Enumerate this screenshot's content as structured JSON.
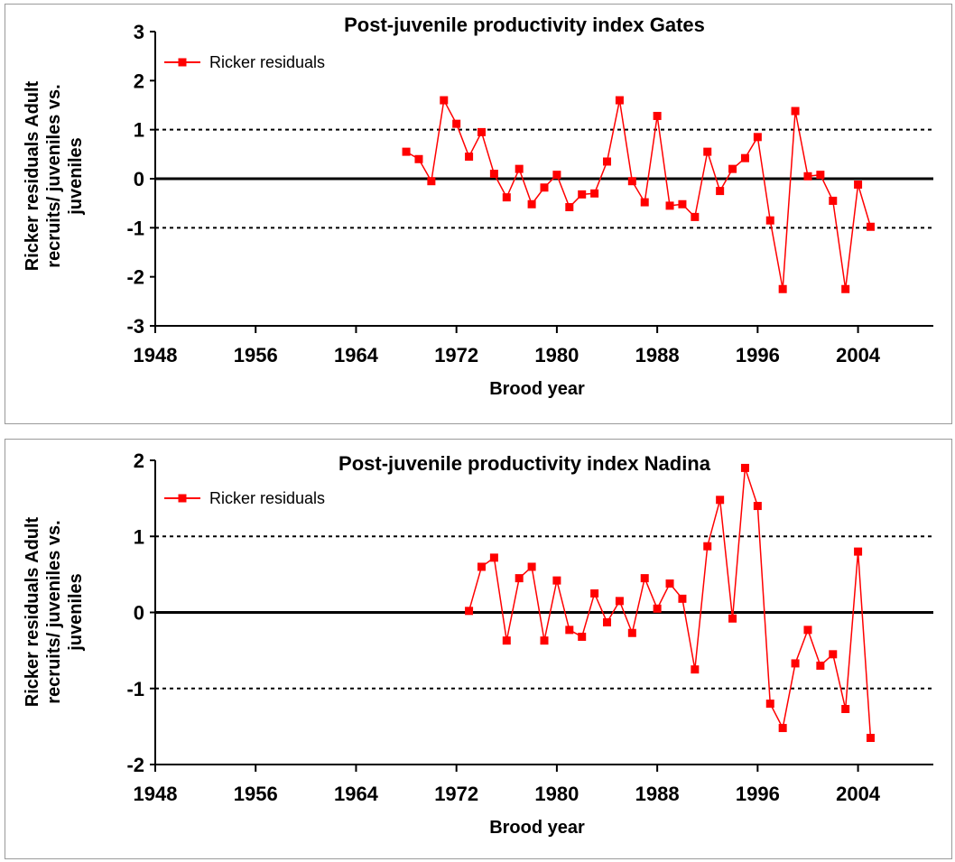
{
  "charts": [
    {
      "type": "line",
      "title": "Post-juvenile productivity index Gates",
      "xlabel": "Brood year",
      "ylabel_lines": [
        "Ricker residuals Adult",
        "recruits/ juveniles vs.",
        "juveniles"
      ],
      "xlim": [
        1948,
        2010
      ],
      "ylim": [
        -3,
        3
      ],
      "x_ticks": [
        1948,
        1956,
        1964,
        1972,
        1980,
        1988,
        1996,
        2004
      ],
      "y_ticks": [
        -3,
        -2,
        -1,
        0,
        1,
        2,
        3
      ],
      "reference_lines": [
        {
          "y": 0,
          "style": "solid"
        },
        {
          "y": 1,
          "style": "dotted"
        },
        {
          "y": -1,
          "style": "dotted"
        }
      ],
      "legend": {
        "position": "top-left",
        "entries": [
          "Ricker residuals"
        ]
      },
      "series": [
        {
          "name": "Ricker residuals",
          "color": "#ff0000",
          "marker": "square",
          "x": [
            1968,
            1969,
            1970,
            1971,
            1972,
            1973,
            1974,
            1975,
            1976,
            1977,
            1978,
            1979,
            1980,
            1981,
            1982,
            1983,
            1984,
            1985,
            1986,
            1987,
            1988,
            1989,
            1990,
            1991,
            1992,
            1993,
            1994,
            1995,
            1996,
            1997,
            1998,
            1999,
            2000,
            2001,
            2002,
            2003,
            2004,
            2005
          ],
          "y": [
            0.55,
            0.4,
            -0.05,
            1.6,
            1.12,
            0.45,
            0.95,
            0.1,
            -0.38,
            0.2,
            -0.52,
            -0.18,
            0.08,
            -0.58,
            -0.32,
            -0.3,
            0.35,
            1.6,
            -0.05,
            -0.48,
            1.28,
            -0.55,
            -0.52,
            -0.78,
            0.55,
            -0.25,
            0.2,
            0.42,
            0.85,
            -0.85,
            -2.25,
            1.38,
            0.05,
            0.08,
            -0.45,
            -2.25,
            -0.12,
            -0.98
          ]
        }
      ]
    },
    {
      "type": "line",
      "title": "Post-juvenile productivity index Nadina",
      "xlabel": "Brood year",
      "ylabel_lines": [
        "Ricker residuals Adult",
        "recruits/ juveniles vs.",
        "juveniles"
      ],
      "xlim": [
        1948,
        2010
      ],
      "ylim": [
        -2,
        2
      ],
      "x_ticks": [
        1948,
        1956,
        1964,
        1972,
        1980,
        1988,
        1996,
        2004
      ],
      "y_ticks": [
        -2,
        -1,
        0,
        1,
        2
      ],
      "reference_lines": [
        {
          "y": 0,
          "style": "solid"
        },
        {
          "y": 1,
          "style": "dotted"
        },
        {
          "y": -1,
          "style": "dotted"
        }
      ],
      "legend": {
        "position": "top-left",
        "entries": [
          "Ricker residuals"
        ]
      },
      "series": [
        {
          "name": "Ricker residuals",
          "color": "#ff0000",
          "marker": "square",
          "x": [
            1973,
            1974,
            1975,
            1976,
            1977,
            1978,
            1979,
            1980,
            1981,
            1982,
            1983,
            1984,
            1985,
            1986,
            1987,
            1988,
            1989,
            1990,
            1991,
            1992,
            1993,
            1994,
            1995,
            1996,
            1997,
            1998,
            1999,
            2000,
            2001,
            2002,
            2003,
            2004,
            2005
          ],
          "y": [
            0.02,
            0.6,
            0.72,
            -0.37,
            0.45,
            0.6,
            -0.37,
            0.42,
            -0.23,
            -0.32,
            0.25,
            -0.13,
            0.15,
            -0.27,
            0.45,
            0.05,
            0.38,
            0.18,
            -0.75,
            0.87,
            1.48,
            -0.08,
            1.9,
            1.4,
            -1.2,
            -1.52,
            -0.67,
            -0.23,
            -0.7,
            -0.55,
            -1.27,
            0.8,
            -1.65
          ]
        }
      ]
    }
  ]
}
